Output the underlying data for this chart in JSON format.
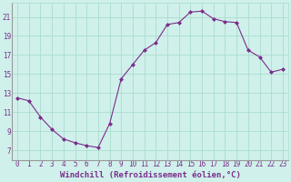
{
  "x": [
    0,
    1,
    2,
    3,
    4,
    5,
    6,
    7,
    8,
    9,
    10,
    11,
    12,
    13,
    14,
    15,
    16,
    17,
    18,
    19,
    20,
    21,
    22,
    23
  ],
  "y": [
    12.5,
    12.2,
    10.5,
    9.2,
    8.2,
    7.8,
    7.5,
    7.3,
    9.8,
    14.5,
    16.0,
    17.5,
    18.3,
    20.2,
    20.4,
    21.5,
    21.6,
    20.8,
    20.5,
    20.4,
    17.5,
    16.8,
    15.2,
    15.5
  ],
  "line_color": "#7B2D8B",
  "marker": "D",
  "marker_size": 2.0,
  "bg_color": "#cff0eb",
  "grid_color": "#aaddcc",
  "xlabel": "Windchill (Refroidissement éolien,°C)",
  "ylabel": "",
  "title": "",
  "xlim": [
    -0.5,
    23.5
  ],
  "ylim": [
    6,
    22.5
  ],
  "yticks": [
    7,
    9,
    11,
    13,
    15,
    17,
    19,
    21
  ],
  "xticks": [
    0,
    1,
    2,
    3,
    4,
    5,
    6,
    7,
    8,
    9,
    10,
    11,
    12,
    13,
    14,
    15,
    16,
    17,
    18,
    19,
    20,
    21,
    22,
    23
  ],
  "xtick_labels": [
    "0",
    "1",
    "2",
    "3",
    "4",
    "5",
    "6",
    "7",
    "8",
    "9",
    "10",
    "11",
    "12",
    "13",
    "14",
    "15",
    "16",
    "17",
    "18",
    "19",
    "20",
    "21",
    "22",
    "23"
  ],
  "font_color": "#7B2D8B",
  "font_size": 5.5,
  "label_fontsize": 6.5
}
